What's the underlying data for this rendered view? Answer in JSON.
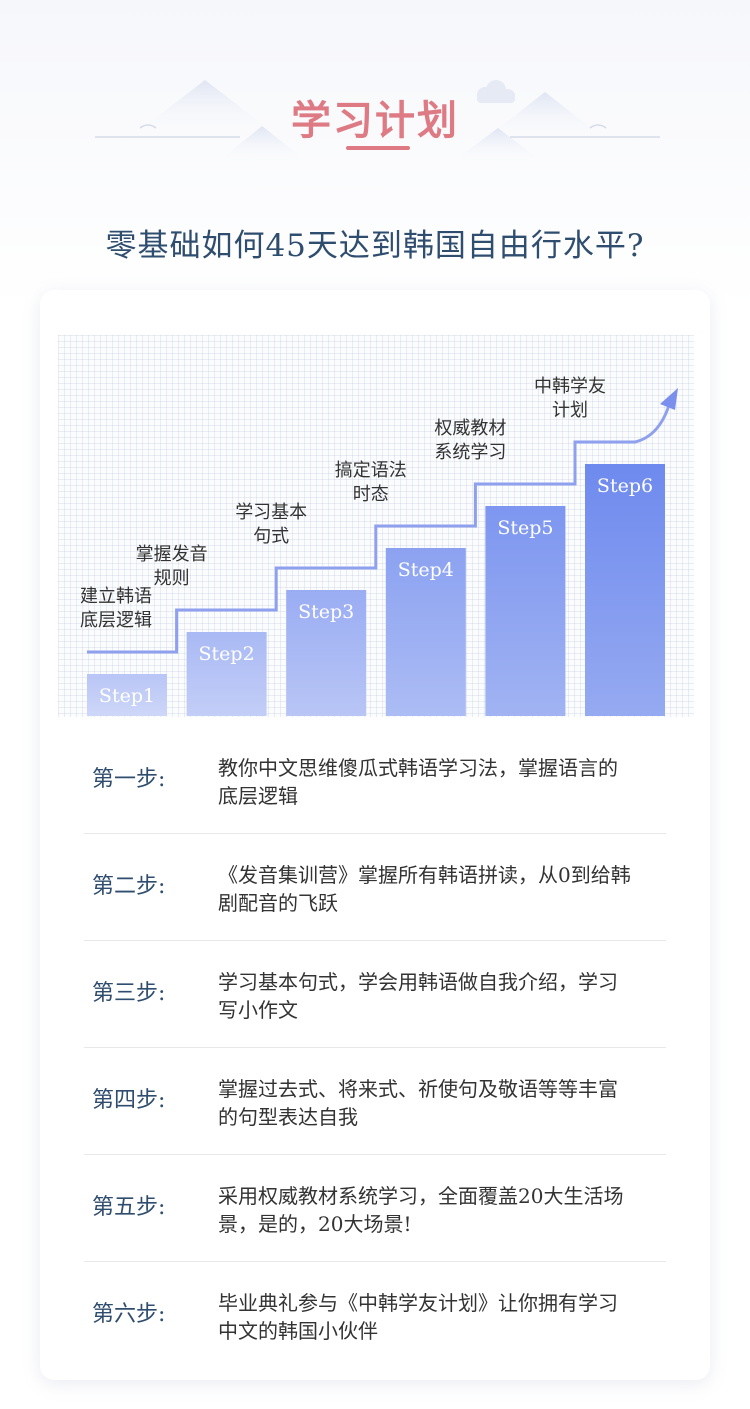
{
  "header": {
    "title": "学习计划",
    "subtitle": "零基础如何45天达到韩国自由行水平?"
  },
  "colors": {
    "title": "#de7a83",
    "subtitle": "#2f4d6e",
    "bar_light": "#c5d0f7",
    "bar_dark": "#7690ef",
    "arrow": "#8fa1ee"
  },
  "chart_data": {
    "type": "bar",
    "categories": [
      "Step1",
      "Step2",
      "Step3",
      "Step4",
      "Step5",
      "Step6"
    ],
    "values": [
      1,
      2,
      3,
      4,
      5,
      6
    ],
    "step_captions": [
      [
        "建立韩语",
        "底层逻辑"
      ],
      [
        "掌握发音",
        "规则"
      ],
      [
        "学习基本",
        "句式"
      ],
      [
        "搞定语法",
        "时态"
      ],
      [
        "权威教材",
        "系统学习"
      ],
      [
        "中韩学友",
        "计划"
      ]
    ]
  },
  "steps": [
    {
      "label": "第一步:",
      "desc_lines": [
        "教你中文思维傻瓜式韩语学习法，掌握语言的",
        "底层逻辑"
      ]
    },
    {
      "label": "第二步:",
      "desc_lines": [
        "《发音集训营》掌握所有韩语拼读，从0到给韩",
        "剧配音的飞跃"
      ]
    },
    {
      "label": "第三步:",
      "desc_lines": [
        "学习基本句式，学会用韩语做自我介绍，学习",
        "写小作文"
      ]
    },
    {
      "label": "第四步:",
      "desc_lines": [
        "掌握过去式、将来式、祈使句及敬语等等丰富",
        "的句型表达自我"
      ]
    },
    {
      "label": "第五步:",
      "desc_lines": [
        "采用权威教材系统学习，全面覆盖20大生活场",
        "景，是的，20大场景!"
      ]
    },
    {
      "label": "第六步:",
      "desc_lines": [
        "毕业典礼参与《中韩学友计划》让你拥有学习",
        "中文的韩国小伙伴"
      ]
    }
  ]
}
